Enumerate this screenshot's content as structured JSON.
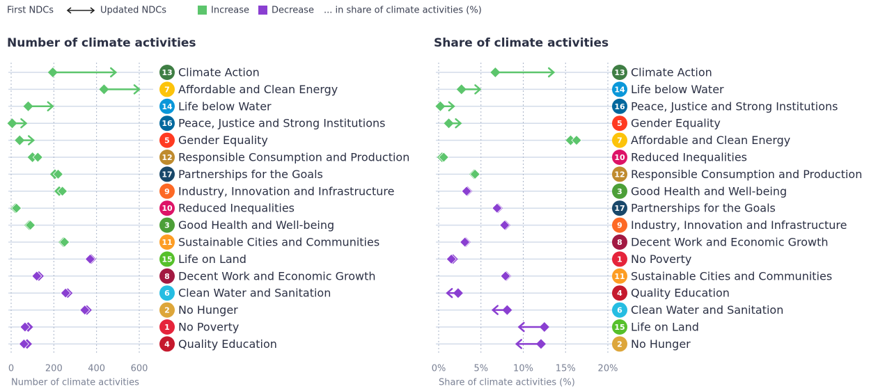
{
  "legend": {
    "first": "First NDCs",
    "updated": "Updated NDCs",
    "increase": {
      "label": "Increase",
      "color": "#5cc56c"
    },
    "decrease": {
      "label": "Decrease",
      "color": "#8a3fd1"
    },
    "note": "... in share of climate activities (%)"
  },
  "chart_data": [
    {
      "type": "dumbbell",
      "title": "Number of climate activities",
      "x_label": "Number of climate activities",
      "goals": [
        "13",
        "7",
        "14",
        "16",
        "5",
        "12",
        "17",
        "9",
        "10",
        "3",
        "11",
        "15",
        "8",
        "6",
        "2",
        "1",
        "4"
      ],
      "categories": [
        "Climate Action",
        "Affordable and Clean Energy",
        "Life below Water",
        "Peace, Justice and Strong Institutions",
        "Gender Equality",
        "Responsible Consumption and Production",
        "Partnerships for the Goals",
        "Industry, Innovation and Infrastructure",
        "Reduced Inequalities",
        "Good Health and Well-being",
        "Sustainable Cities and Communities",
        "Life on Land",
        "Decent Work and Economic Growth",
        "Clean Water and Sanitation",
        "No Hunger",
        "No Poverty",
        "Quality Education"
      ],
      "goal_colors": [
        "#3F7E44",
        "#FCC30B",
        "#0A97D9",
        "#00689D",
        "#FF3A21",
        "#BF8B2E",
        "#19486A",
        "#FD6925",
        "#DD1367",
        "#4C9F38",
        "#FD9D24",
        "#56C02B",
        "#A21942",
        "#26BDE2",
        "#DDA63A",
        "#E5243B",
        "#C5192D"
      ],
      "first": [
        195,
        435,
        80,
        5,
        40,
        100,
        205,
        225,
        20,
        85,
        245,
        375,
        130,
        265,
        355,
        80,
        75
      ],
      "updated": [
        490,
        600,
        195,
        70,
        105,
        125,
        220,
        240,
        25,
        90,
        250,
        370,
        120,
        255,
        345,
        65,
        60
      ],
      "colors": [
        "#5cc56c",
        "#5cc56c",
        "#5cc56c",
        "#5cc56c",
        "#5cc56c",
        "#5cc56c",
        "#5cc56c",
        "#5cc56c",
        "#5cc56c",
        "#5cc56c",
        "#5cc56c",
        "#8a3fd1",
        "#8a3fd1",
        "#8a3fd1",
        "#8a3fd1",
        "#8a3fd1",
        "#8a3fd1"
      ],
      "xlim": [
        0,
        600
      ],
      "xticks": [
        0,
        200,
        400,
        600
      ]
    },
    {
      "type": "dumbbell",
      "title": "Share of climate activities",
      "x_label": "Share of climate activities (%)",
      "goals": [
        "13",
        "14",
        "16",
        "5",
        "7",
        "10",
        "12",
        "3",
        "17",
        "9",
        "8",
        "1",
        "11",
        "4",
        "6",
        "15",
        "2"
      ],
      "categories": [
        "Climate Action",
        "Life below Water",
        "Peace, Justice and Strong Institutions",
        "Gender Equality",
        "Affordable and Clean Energy",
        "Reduced Inequalities",
        "Responsible Consumption and Production",
        "Good Health and Well-being",
        "Partnerships for the Goals",
        "Industry, Innovation and Infrastructure",
        "Decent Work and Economic Growth",
        "No Poverty",
        "Sustainable Cities and Communities",
        "Quality Education",
        "Clean Water and Sanitation",
        "Life on Land",
        "No Hunger"
      ],
      "goal_colors": [
        "#3F7E44",
        "#0A97D9",
        "#00689D",
        "#FF3A21",
        "#FCC30B",
        "#DD1367",
        "#BF8B2E",
        "#4C9F38",
        "#19486A",
        "#FD6925",
        "#A21942",
        "#E5243B",
        "#FD9D24",
        "#C5192D",
        "#26BDE2",
        "#56C02B",
        "#DDA63A"
      ],
      "first": [
        6.7,
        2.7,
        0.2,
        1.2,
        15.6,
        0.4,
        4.2,
        3.4,
        7.0,
        7.9,
        3.2,
        1.7,
        8.0,
        2.3,
        8.1,
        12.5,
        12.1
      ],
      "updated": [
        13.6,
        4.9,
        1.8,
        2.6,
        16.3,
        0.6,
        4.3,
        3.3,
        6.9,
        7.8,
        3.1,
        1.5,
        7.9,
        1.0,
        6.4,
        9.5,
        9.2
      ],
      "colors": [
        "#5cc56c",
        "#5cc56c",
        "#5cc56c",
        "#5cc56c",
        "#5cc56c",
        "#5cc56c",
        "#5cc56c",
        "#8a3fd1",
        "#8a3fd1",
        "#8a3fd1",
        "#8a3fd1",
        "#8a3fd1",
        "#8a3fd1",
        "#8a3fd1",
        "#8a3fd1",
        "#8a3fd1",
        "#8a3fd1"
      ],
      "xlim": [
        0,
        20
      ],
      "xticks": [
        {
          "value": 0,
          "label": "0%"
        },
        {
          "value": 5,
          "label": "5%"
        },
        {
          "value": 10,
          "label": "10%"
        },
        {
          "value": 15,
          "label": "15%"
        },
        {
          "value": 20,
          "label": "20%"
        }
      ]
    }
  ]
}
